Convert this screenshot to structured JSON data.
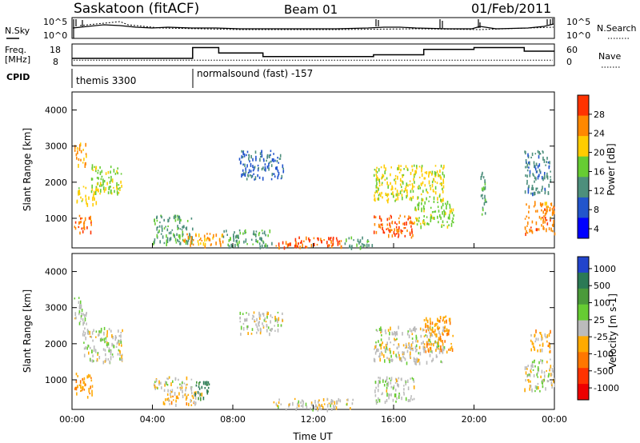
{
  "header": {
    "station": "Saskatoon (fitACF)",
    "beam": "Beam 01",
    "date": "01/Feb/2011"
  },
  "noise_panel": {
    "left_label": "N.Sky",
    "right_label": "N.Search",
    "tick_top": "10^5",
    "tick_bottom": "10^0"
  },
  "freq_panel": {
    "left_label_1": "Freq.",
    "left_label_2": "[MHz]",
    "right_label": "Nave",
    "left_ticks": [
      "18",
      "8"
    ],
    "right_ticks": [
      "60",
      "0"
    ]
  },
  "cpid_panel": {
    "label": "CPID",
    "programs": [
      {
        "name": "themis 3300",
        "start_hour": 0
      },
      {
        "name": "normalsound (fast) -157",
        "start_hour": 6
      }
    ]
  },
  "power_panel": {
    "ylabel": "Slant Range [km]",
    "yticks": [
      "4000",
      "3000",
      "2000",
      "1000"
    ],
    "colorbar_label": "Power [dB]",
    "colorbar_ticks": [
      "28",
      "24",
      "20",
      "16",
      "12",
      "8",
      "4"
    ],
    "colors": [
      "#0000ff",
      "#2255cc",
      "#4d8f7c",
      "#66cc33",
      "#ffcc00",
      "#ff8800",
      "#ff3300"
    ]
  },
  "velocity_panel": {
    "ylabel": "Slant Range [km]",
    "yticks": [
      "4000",
      "3000",
      "2000",
      "1000"
    ],
    "colorbar_label": "Velocity [m s-1]",
    "colorbar_ticks": [
      "1000",
      "500",
      "100",
      "25",
      "-25",
      "-100",
      "-500",
      "-1000"
    ],
    "colors": [
      "#2244cc",
      "#2b7a55",
      "#4a9a3a",
      "#66cc33",
      "#bbbbbb",
      "#ffaa00",
      "#ff7700",
      "#ff3300",
      "#ee0000"
    ]
  },
  "xaxis": {
    "label": "Time UT",
    "ticks": [
      "00:00",
      "04:00",
      "08:00",
      "12:00",
      "16:00",
      "20:00",
      "00:00"
    ]
  },
  "chart_data": {
    "type": "heatmap",
    "title": "Saskatoon (fitACF) Beam 01 01/Feb/2011",
    "xlabel": "Time UT",
    "ylabel": "Slant Range [km]",
    "xlim": [
      0,
      24
    ],
    "ylim": [
      180,
      4500
    ],
    "x_unit": "hours UT",
    "series": [
      {
        "name": "Power [dB]",
        "clim": [
          0,
          30
        ],
        "regions": [
          {
            "t0": 0.1,
            "t1": 1.0,
            "r0": 600,
            "r1": 1100,
            "v": 24
          },
          {
            "t0": 0.1,
            "t1": 0.7,
            "r0": 2500,
            "r1": 3100,
            "v": 22
          },
          {
            "t0": 0.2,
            "t1": 1.3,
            "r0": 1400,
            "r1": 1900,
            "v": 18
          },
          {
            "t0": 0.9,
            "t1": 2.5,
            "r0": 1700,
            "r1": 2500,
            "v": 16
          },
          {
            "t0": 4.0,
            "t1": 6.0,
            "r0": 300,
            "r1": 1100,
            "v": 12
          },
          {
            "t0": 5.5,
            "t1": 7.5,
            "r0": 250,
            "r1": 600,
            "v": 22
          },
          {
            "t0": 7.5,
            "t1": 10.0,
            "r0": 250,
            "r1": 700,
            "v": 12
          },
          {
            "t0": 10.0,
            "t1": 13.5,
            "r0": 220,
            "r1": 500,
            "v": 26
          },
          {
            "t0": 13.5,
            "t1": 15.0,
            "r0": 220,
            "r1": 500,
            "v": 12
          },
          {
            "t0": 8.3,
            "t1": 10.5,
            "r0": 2100,
            "r1": 2900,
            "v": 8
          },
          {
            "t0": 15.0,
            "t1": 17.0,
            "r0": 500,
            "r1": 1100,
            "v": 26
          },
          {
            "t0": 15.0,
            "t1": 18.5,
            "r0": 1500,
            "r1": 2500,
            "v": 18
          },
          {
            "t0": 17.0,
            "t1": 19.0,
            "r0": 800,
            "r1": 1500,
            "v": 16
          },
          {
            "t0": 20.3,
            "t1": 20.6,
            "r0": 1100,
            "r1": 2300,
            "v": 12
          },
          {
            "t0": 22.5,
            "t1": 24.0,
            "r0": 600,
            "r1": 1500,
            "v": 24
          },
          {
            "t0": 22.5,
            "t1": 23.8,
            "r0": 1700,
            "r1": 2900,
            "v": 10
          }
        ]
      },
      {
        "name": "Velocity [m s-1]",
        "clim": [
          -1000,
          1000
        ],
        "regions": [
          {
            "t0": 0.1,
            "t1": 1.0,
            "r0": 500,
            "r1": 1200,
            "v": -300
          },
          {
            "t0": 0.1,
            "t1": 0.7,
            "r0": 2500,
            "r1": 3300,
            "v": 50
          },
          {
            "t0": 0.5,
            "t1": 2.5,
            "r0": 1500,
            "r1": 2500,
            "v": 0
          },
          {
            "t0": 4.0,
            "t1": 6.0,
            "r0": 700,
            "r1": 1100,
            "v": 0
          },
          {
            "t0": 4.5,
            "t1": 6.5,
            "r0": 300,
            "r1": 700,
            "v": -200
          },
          {
            "t0": 6.0,
            "t1": 6.8,
            "r0": 500,
            "r1": 1000,
            "v": 600
          },
          {
            "t0": 8.3,
            "t1": 10.5,
            "r0": 2300,
            "r1": 2900,
            "v": 0
          },
          {
            "t0": 10.0,
            "t1": 14.0,
            "r0": 200,
            "r1": 500,
            "v": -30
          },
          {
            "t0": 15.0,
            "t1": 17.0,
            "r0": 400,
            "r1": 1100,
            "v": 50
          },
          {
            "t0": 15.0,
            "t1": 18.5,
            "r0": 1500,
            "r1": 2500,
            "v": 0
          },
          {
            "t0": 17.5,
            "t1": 19.0,
            "r0": 1800,
            "r1": 2800,
            "v": -300
          },
          {
            "t0": 22.5,
            "t1": 24.0,
            "r0": 700,
            "r1": 1600,
            "v": 0
          },
          {
            "t0": 22.8,
            "t1": 23.8,
            "r0": 1800,
            "r1": 2400,
            "v": -200
          }
        ]
      }
    ],
    "frequency_mhz": [
      {
        "t0": 0,
        "t1": 6,
        "v": 10
      },
      {
        "t0": 6,
        "t1": 7.3,
        "v": 16
      },
      {
        "t0": 7.3,
        "t1": 9.5,
        "v": 13
      },
      {
        "t0": 9.5,
        "t1": 15,
        "v": 11
      },
      {
        "t0": 15,
        "t1": 17.5,
        "v": 12
      },
      {
        "t0": 17.5,
        "t1": 20,
        "v": 15
      },
      {
        "t0": 20,
        "t1": 22.5,
        "v": 16
      },
      {
        "t0": 22.5,
        "t1": 24,
        "v": 14
      }
    ],
    "nave_level": 9
  }
}
